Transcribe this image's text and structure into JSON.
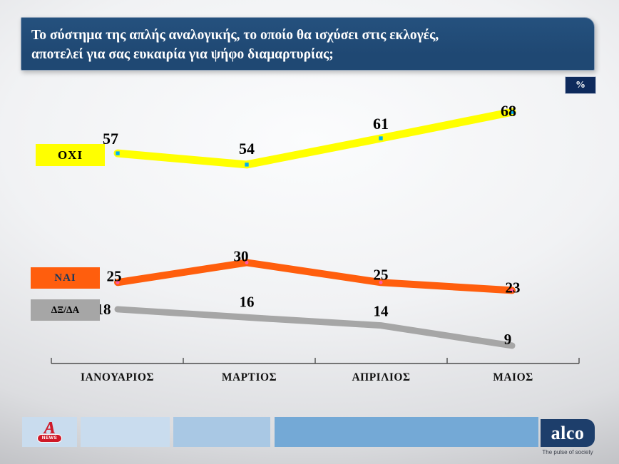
{
  "header": {
    "title_line1": "Το σύστημα της απλής αναλογικής, το οποίο θα ισχύσει στις εκλογές,",
    "title_line2": "αποτελεί για σας ευκαιρία για ψήφο διαμαρτυρίας;",
    "unit_badge": "%"
  },
  "chart_data": {
    "type": "line",
    "title": "Το σύστημα της απλής αναλογικής, το οποίο θα ισχύσει στις εκλογές, αποτελεί για σας ευκαιρία για ψήφο διαμαρτυρίας;",
    "unit": "%",
    "categories": [
      "ΙΑΝΟΥΑΡΙΟΣ",
      "ΜΑΡΤΙΟΣ",
      "ΑΠΡΙΛΙΟΣ",
      "ΜΑΙΟΣ"
    ],
    "series": [
      {
        "name": "ΟΧΙ",
        "values": [
          57,
          54,
          61,
          68
        ],
        "color": "#ffff00",
        "marker": "square",
        "marker_color": "#00b0f0",
        "legend_text_color": "#000000"
      },
      {
        "name": "ΝΑΙ",
        "values": [
          25,
          30,
          25,
          23
        ],
        "color": "#ff5e0d",
        "marker": "dot",
        "marker_color": "#ff59a5",
        "legend_text_color": "#17375e"
      },
      {
        "name": "ΔΞ/ΔΑ",
        "values": [
          18,
          16,
          14,
          9
        ],
        "color": "#a6a6a6",
        "marker": "none",
        "marker_color": "",
        "legend_text_color": "#000000"
      }
    ],
    "value_labels": true,
    "grid": false,
    "legend_position": "left"
  },
  "footer": {
    "alpha_letter": "A",
    "alpha_news": "NEWS",
    "alco_text": "alco",
    "alco_tagline": "The pulse of society"
  },
  "colors": {
    "title_bar": "#1f4873",
    "title_text": "#ffffff",
    "badge_bg": "#0e2a5c",
    "badge_text": "#ffffff",
    "axis": "#4d4d4d",
    "data_label": "#000000",
    "footer_seg_light": "#c9dcee",
    "footer_seg_mid": "#a9c8e4",
    "footer_seg_blue": "#74a9d6",
    "alco_navy": "#1d3e6b",
    "alco_tagline": "#3a3f4a",
    "alpha_red": "#cf1928"
  }
}
